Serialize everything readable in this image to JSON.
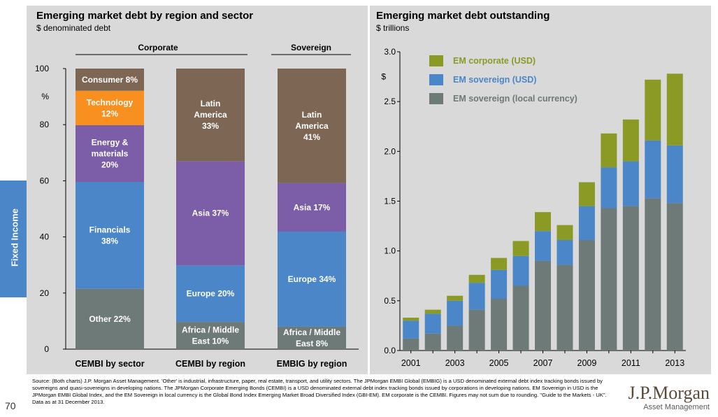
{
  "page_number": "70",
  "side_tab": "Fixed Income",
  "left": {
    "title": "Emerging market debt by region and sector",
    "subtitle": "$ denominated debt",
    "group_labels": [
      "Corporate",
      "Sovereign"
    ],
    "unit_label": "%"
  },
  "right": {
    "title": "Emerging market debt outstanding",
    "subtitle": "$ trillions",
    "unit_label": "$"
  },
  "colors": {
    "brown": "#7d6654",
    "orange": "#f7901e",
    "purple": "#7b5ea7",
    "blue": "#4a86c8",
    "gray": "#6e7a78",
    "olive": "#8b9a25"
  },
  "chart_data": [
    {
      "type": "bar",
      "stacked": true,
      "categories": [
        "CEMBI by sector",
        "CEMBI by region",
        "EMBIG by region"
      ],
      "ylim": [
        0,
        100
      ],
      "yticks": [
        0,
        20,
        40,
        60,
        80,
        100
      ],
      "stacks": [
        [
          {
            "label": "Other 22%",
            "value": 21.5,
            "color": "gray"
          },
          {
            "label": "Financials\n38%",
            "value": 38.1,
            "color": "blue"
          },
          {
            "label": "Energy &\nmaterials\n20%",
            "value": 20.2,
            "color": "purple"
          },
          {
            "label": "Technology\n12%",
            "value": 12.3,
            "color": "orange"
          },
          {
            "label": "Consumer 8%",
            "value": 7.9,
            "color": "brown"
          }
        ],
        [
          {
            "label": "Africa / Middle\nEast 10%",
            "value": 9.7,
            "color": "gray"
          },
          {
            "label": "Europe 20%",
            "value": 20.2,
            "color": "blue"
          },
          {
            "label": "Asia 37%",
            "value": 37.1,
            "color": "purple"
          },
          {
            "label": "Latin\nAmerica\n33%",
            "value": 33.0,
            "color": "brown"
          }
        ],
        [
          {
            "label": "Africa / Middle\nEast 8%",
            "value": 8.0,
            "color": "gray"
          },
          {
            "label": "Europe 34%",
            "value": 33.9,
            "color": "blue"
          },
          {
            "label": "Asia 17%",
            "value": 17.3,
            "color": "purple"
          },
          {
            "label": "Latin\nAmerica\n41%",
            "value": 40.8,
            "color": "brown"
          }
        ]
      ]
    },
    {
      "type": "bar",
      "stacked": true,
      "categories": [
        "2001",
        "2002",
        "2003",
        "2004",
        "2005",
        "2006",
        "2007",
        "2008",
        "2009",
        "2010",
        "2011",
        "2012",
        "2013"
      ],
      "xtick_labels": [
        "2001",
        "2003",
        "2005",
        "2007",
        "2009",
        "2011",
        "2013"
      ],
      "ylim": [
        0,
        3.0
      ],
      "yticks": [
        "0.0",
        "0.5",
        "1.0",
        "1.5",
        "2.0",
        "2.5",
        "3.0"
      ],
      "series": [
        {
          "name": "EM sovereign (local currency)",
          "color": "gray",
          "values": [
            0.12,
            0.17,
            0.25,
            0.41,
            0.52,
            0.65,
            0.9,
            0.86,
            1.11,
            1.43,
            1.45,
            1.53,
            1.48
          ]
        },
        {
          "name": "EM sovereign (USD)",
          "color": "blue",
          "values": [
            0.18,
            0.2,
            0.25,
            0.27,
            0.29,
            0.3,
            0.3,
            0.25,
            0.34,
            0.41,
            0.45,
            0.58,
            0.58
          ]
        },
        {
          "name": "EM corporate (USD)",
          "color": "olive",
          "values": [
            0.03,
            0.04,
            0.05,
            0.08,
            0.12,
            0.15,
            0.19,
            0.15,
            0.24,
            0.34,
            0.42,
            0.61,
            0.72
          ]
        }
      ],
      "legend": [
        {
          "name": "EM corporate (USD)",
          "color": "olive"
        },
        {
          "name": "EM sovereign (USD)",
          "color": "blue"
        },
        {
          "name": "EM sovereign (local currency)",
          "color": "gray"
        }
      ],
      "legend_position": "top-left"
    }
  ],
  "source_note": "Source: (Both charts) J.P. Morgan Asset Management. 'Other' is industrial, infrastructure, paper, real estate, transport, and utility sectors. The JPMorgan EMBI Global (EMBIG) is a USD denominated external debt index tracking bonds issued by sovereigns and quasi-sovereigns in developing nations. The JPMorgan Corporate Emerging Bonds (CEMBI) is a USD denominated external debt index tracking bonds issued by corporations in developing nations. EM Sovereign in USD is the JPMorgan EMBI Global Index, and the EM Sovereign in local currency is the Global Bond Index Emerging Market Broad Diversified Index (GBI-EM). EM corporate is the CEMBI. Figures may not sum due to rounding. \"Guide to the Markets - UK\". Data as at 31 December 2013.",
  "brand": {
    "name": "J.P.Morgan",
    "sub": "Asset Management"
  }
}
